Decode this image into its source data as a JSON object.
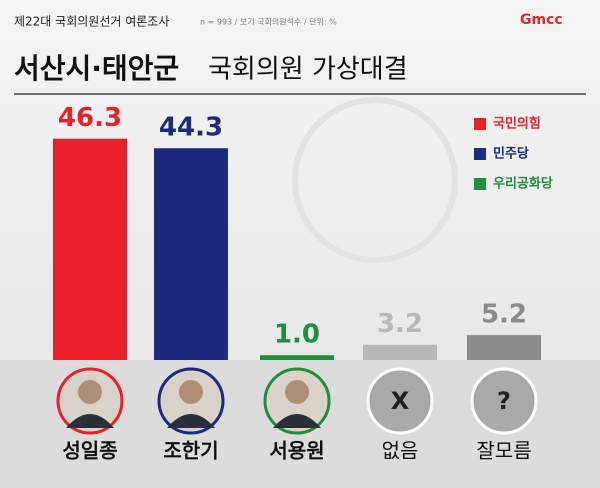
{
  "header": {
    "survey": "제22대 국회의원선거 여론조사",
    "note": "n = 993 / 보기 국회의원석수 / 단위: %",
    "logo": "Gmcc"
  },
  "chart_data": {
    "type": "bar",
    "title_region": "서산시·태안군",
    "title_main": "국회의원 가상대결",
    "categories": [
      "성일종",
      "조한기",
      "서용원",
      "없음",
      "잘모름"
    ],
    "values": [
      46.3,
      44.3,
      1,
      3.2,
      5.2
    ],
    "value_labels": [
      "46.3",
      "44.3",
      "1.0",
      "3.2",
      "5.2"
    ],
    "colors": [
      "#e8202a",
      "#1e2a7d",
      "#1f8e3d",
      "#b8b8b8",
      "#8a8a8a"
    ],
    "icons": [
      null,
      null,
      null,
      "X",
      "?"
    ],
    "legend": [
      {
        "name": "국민의힘",
        "color": "#e8202a"
      },
      {
        "name": "민주당",
        "color": "#1e2a7d"
      },
      {
        "name": "우리공화당",
        "color": "#1f8e3d"
      }
    ]
  }
}
